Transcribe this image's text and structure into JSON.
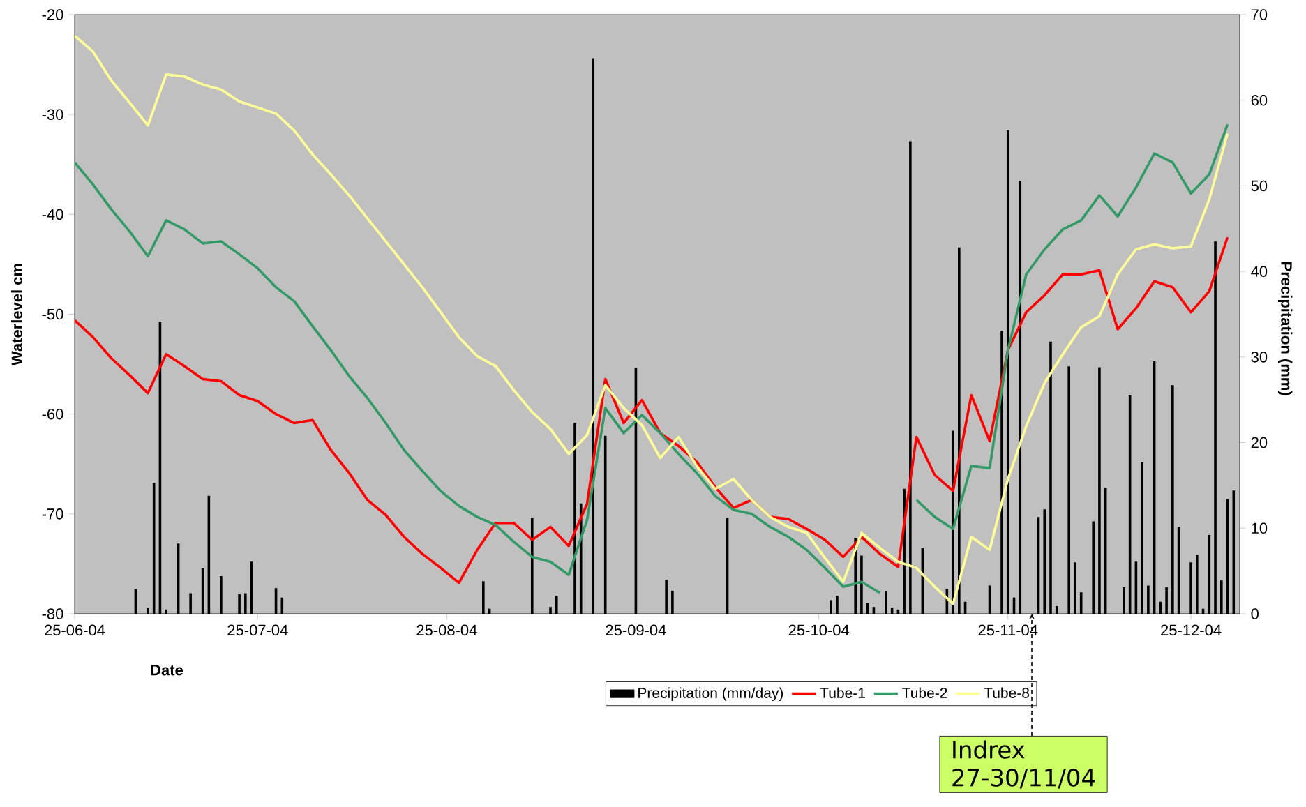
{
  "chart_data": {
    "type": "line",
    "xlabel": "Date",
    "ylabel": "Waterlevel cm",
    "y2label": "Precipitation (mm)",
    "xlim": [
      "2004-06-25",
      "2005-01-02"
    ],
    "xticks": [
      {
        "value": "2004-06-25",
        "label": "25-06-04"
      },
      {
        "value": "2004-07-25",
        "label": "25-07-04"
      },
      {
        "value": "2004-08-25",
        "label": "25-08-04"
      },
      {
        "value": "2004-09-25",
        "label": "25-09-04"
      },
      {
        "value": "2004-10-25",
        "label": "25-10-04"
      },
      {
        "value": "2004-11-25",
        "label": "25-11-04"
      },
      {
        "value": "2004-12-25",
        "label": "25-12-04"
      }
    ],
    "ylim": [
      -80,
      -20
    ],
    "yticks": [
      -80,
      -70,
      -60,
      -50,
      -40,
      -30,
      -20
    ],
    "y2lim": [
      0,
      70
    ],
    "y2ticks": [
      0,
      10,
      20,
      30,
      40,
      50,
      60,
      70
    ],
    "legend": "bottom",
    "x": [
      "2004-06-25",
      "2004-06-28",
      "2004-07-01",
      "2004-07-04",
      "2004-07-07",
      "2004-07-10",
      "2004-07-13",
      "2004-07-16",
      "2004-07-19",
      "2004-07-22",
      "2004-07-25",
      "2004-07-28",
      "2004-07-31",
      "2004-08-03",
      "2004-08-06",
      "2004-08-09",
      "2004-08-12",
      "2004-08-15",
      "2004-08-18",
      "2004-08-21",
      "2004-08-24",
      "2004-08-27",
      "2004-08-30",
      "2004-09-02",
      "2004-09-05",
      "2004-09-08",
      "2004-09-11",
      "2004-09-14",
      "2004-09-17",
      "2004-09-20",
      "2004-09-23",
      "2004-09-26",
      "2004-09-29",
      "2004-10-02",
      "2004-10-05",
      "2004-10-08",
      "2004-10-11",
      "2004-10-14",
      "2004-10-17",
      "2004-10-20",
      "2004-10-23",
      "2004-10-26",
      "2004-10-29",
      "2004-11-01",
      "2004-11-04",
      "2004-11-07",
      "2004-11-10",
      "2004-11-13",
      "2004-11-16",
      "2004-11-19",
      "2004-11-22",
      "2004-11-25",
      "2004-11-28",
      "2004-12-01",
      "2004-12-04",
      "2004-12-07",
      "2004-12-10",
      "2004-12-13",
      "2004-12-16",
      "2004-12-19",
      "2004-12-22",
      "2004-12-25",
      "2004-12-28",
      "2004-12-31"
    ],
    "series": [
      {
        "name": "Precipitation (mm/day)",
        "type": "bar",
        "axis": "y2",
        "color": "#000000",
        "x": [
          "2004-07-05",
          "2004-07-07",
          "2004-07-08",
          "2004-07-09",
          "2004-07-10",
          "2004-07-12",
          "2004-07-14",
          "2004-07-16",
          "2004-07-17",
          "2004-07-19",
          "2004-07-22",
          "2004-07-23",
          "2004-07-24",
          "2004-07-28",
          "2004-07-29",
          "2004-08-31",
          "2004-09-01",
          "2004-09-08",
          "2004-09-11",
          "2004-09-12",
          "2004-09-15",
          "2004-09-16",
          "2004-09-18",
          "2004-09-20",
          "2004-09-25",
          "2004-09-30",
          "2004-10-01",
          "2004-10-10",
          "2004-10-27",
          "2004-10-28",
          "2004-10-31",
          "2004-11-01",
          "2004-11-02",
          "2004-11-03",
          "2004-11-05",
          "2004-11-06",
          "2004-11-07",
          "2004-11-08",
          "2004-11-09",
          "2004-11-11",
          "2004-11-15",
          "2004-11-16",
          "2004-11-17",
          "2004-11-18",
          "2004-11-22",
          "2004-11-24",
          "2004-11-25",
          "2004-11-26",
          "2004-11-27",
          "2004-11-30",
          "2004-12-01",
          "2004-12-02",
          "2004-12-03",
          "2004-12-05",
          "2004-12-06",
          "2004-12-07",
          "2004-12-09",
          "2004-12-10",
          "2004-12-11",
          "2004-12-14",
          "2004-12-15",
          "2004-12-16",
          "2004-12-17",
          "2004-12-18",
          "2004-12-19",
          "2004-12-20",
          "2004-12-21",
          "2004-12-22",
          "2004-12-23",
          "2004-12-25",
          "2004-12-26",
          "2004-12-27",
          "2004-12-28",
          "2004-12-29",
          "2004-12-30",
          "2004-12-31",
          "2005-01-01"
        ],
        "values": [
          2.9,
          0.7,
          15.3,
          34.1,
          0.5,
          8.2,
          2.4,
          5.3,
          13.8,
          4.4,
          2.3,
          2.4,
          6.1,
          3.0,
          1.9,
          3.8,
          0.6,
          11.2,
          0.8,
          2.1,
          22.3,
          12.9,
          64.9,
          20.8,
          28.7,
          4.0,
          2.7,
          11.2,
          1.6,
          2.1,
          8.8,
          6.8,
          1.3,
          0.8,
          2.6,
          0.7,
          0.5,
          14.6,
          55.2,
          7.7,
          2.9,
          21.4,
          42.8,
          1.4,
          3.3,
          33.0,
          56.5,
          1.9,
          50.6,
          11.3,
          12.2,
          31.8,
          0.9,
          28.9,
          6.0,
          2.5,
          10.8,
          28.8,
          14.7,
          3.1,
          25.5,
          6.1,
          17.7,
          3.3,
          29.5,
          1.4,
          3.1,
          26.7,
          10.1,
          6.0,
          6.9,
          0.6,
          9.2,
          43.5,
          3.9,
          13.4,
          14.4
        ]
      },
      {
        "name": "Tube-1",
        "color": "#ff0000",
        "values": [
          -50.6,
          -52.3,
          -54.4,
          -56.1,
          -57.9,
          -54.0,
          -55.2,
          -56.5,
          -56.7,
          -58.1,
          -58.7,
          -60.0,
          -60.9,
          -60.6,
          -63.6,
          -65.9,
          -68.6,
          -70.1,
          -72.3,
          -74.0,
          -75.4,
          -76.9,
          -73.6,
          -70.9,
          -70.9,
          -72.6,
          -71.3,
          -73.2,
          -69.0,
          -56.5,
          -60.9,
          -58.6,
          -61.9,
          -63.2,
          -64.8,
          -67.3,
          -69.4,
          -68.6,
          -70.3,
          -70.5,
          -71.5,
          -72.6,
          -74.3,
          -72.3,
          -74.0,
          -75.3,
          -62.3,
          -66.1,
          -67.7,
          -58.1,
          -62.7,
          -53.6,
          -49.8,
          -48.1,
          -46.0,
          -46.0,
          -45.6,
          -51.5,
          -49.4,
          -46.7,
          -47.3,
          -49.8,
          -47.7,
          -42.3
        ]
      },
      {
        "name": "Tube-2",
        "color": "#339966",
        "values": [
          -34.8,
          -37.0,
          -39.5,
          -41.7,
          -44.2,
          -40.6,
          -41.5,
          -42.9,
          -42.7,
          -44.0,
          -45.4,
          -47.3,
          -48.7,
          -51.2,
          -53.6,
          -56.2,
          -58.4,
          -60.9,
          -63.6,
          -65.7,
          -67.7,
          -69.2,
          -70.3,
          -71.1,
          -72.8,
          -74.3,
          -74.8,
          -76.1,
          -70.6,
          -59.4,
          -61.9,
          -60.1,
          -61.9,
          -64.0,
          -65.9,
          -68.2,
          -69.6,
          -70.0,
          -71.3,
          -72.3,
          -73.6,
          -75.4,
          -77.3,
          -76.8,
          -77.9,
          null,
          -68.6,
          -70.3,
          -71.5,
          -65.2,
          -65.4,
          -53.6,
          -46.0,
          -43.5,
          -41.5,
          -40.6,
          -38.1,
          -40.2,
          -37.3,
          -33.9,
          -34.8,
          -37.9,
          -36.0,
          -31.0
        ]
      },
      {
        "name": "Tube-8",
        "color": "#ffff99",
        "values": [
          -22.1,
          -23.7,
          -26.6,
          -28.8,
          -31.1,
          -26.0,
          -26.2,
          -27.0,
          -27.5,
          -28.7,
          -29.3,
          -29.9,
          -31.6,
          -34.0,
          -36.0,
          -38.1,
          -40.4,
          -42.7,
          -45.0,
          -47.3,
          -49.8,
          -52.3,
          -54.2,
          -55.2,
          -57.6,
          -59.8,
          -61.5,
          -64.0,
          -62.1,
          -57.1,
          -59.4,
          -61.1,
          -64.4,
          -62.3,
          -65.2,
          -67.5,
          -66.5,
          -68.6,
          -70.3,
          -71.3,
          -71.9,
          -74.4,
          -76.8,
          -71.9,
          -73.4,
          -74.8,
          -75.4,
          -77.3,
          -79.0,
          -72.3,
          -73.6,
          -66.5,
          -61.2,
          -56.9,
          -54.0,
          -51.3,
          -50.2,
          -46.0,
          -43.5,
          -43.0,
          -43.4,
          -43.2,
          -38.5,
          -31.9
        ]
      }
    ],
    "annotations": [
      "Indrex",
      "27-30/11/04"
    ]
  }
}
